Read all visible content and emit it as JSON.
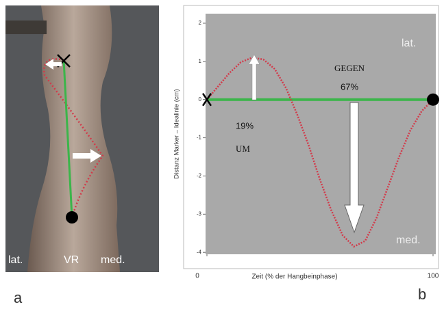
{
  "photo": {
    "labels": [
      "lat.",
      "VR",
      "med."
    ]
  },
  "panel_labels": [
    "a",
    "b"
  ],
  "chart_data": {
    "type": "line",
    "y_label": "Distanz Marker – Idealinie (cm)",
    "x_label": "Zeit (% der Hangbeinphase)",
    "annotations": [
      "lat.",
      "med.",
      "GEGEN",
      "67%",
      "19%",
      "UM"
    ],
    "x": [
      0,
      5,
      10,
      15,
      20,
      25,
      30,
      35,
      40,
      45,
      50,
      55,
      60,
      65,
      70,
      75,
      80,
      85,
      90,
      95,
      100
    ],
    "series": [
      {
        "color": "#d23a4a",
        "values": [
          0,
          0.35,
          0.7,
          0.98,
          1.1,
          1.05,
          0.8,
          0.3,
          -0.4,
          -1.2,
          -2.1,
          -2.9,
          -3.55,
          -3.85,
          -3.7,
          -3.1,
          -2.3,
          -1.5,
          -0.8,
          -0.3,
          0
        ]
      }
    ],
    "xlim": [
      0,
      100
    ],
    "xticks": [
      0,
      100
    ],
    "ylim": [
      -4.05,
      2.25
    ],
    "yticks": [
      2,
      1,
      0,
      -1,
      -2,
      -3,
      -4
    ]
  }
}
